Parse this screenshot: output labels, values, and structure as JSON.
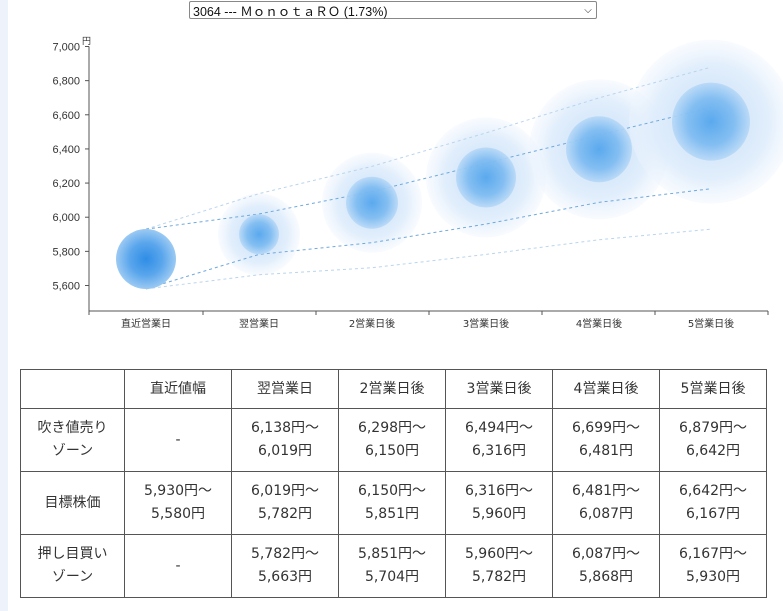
{
  "selector": {
    "value": "3064 --- Ｍｏｎｏｔａ​ＲＯ (1.73%)"
  },
  "chart_data": {
    "type": "scatter",
    "y_unit": "円",
    "ylim": [
      5600,
      7000
    ],
    "y_ticks": [
      "5,600",
      "5,800",
      "6,000",
      "6,200",
      "6,400",
      "6,600",
      "6,800",
      "7,000"
    ],
    "categories": [
      "直近営業日",
      "翌営業日",
      "2営業日後",
      "3営業日後",
      "4営業日後",
      "5営業日後"
    ],
    "center_values": [
      5755,
      5900,
      6085,
      6233,
      6398,
      6560
    ],
    "outer_bands": {
      "upper": [
        5930,
        6138,
        6298,
        6494,
        6699,
        6879
      ],
      "lower": [
        5580,
        5663,
        5704,
        5782,
        5868,
        5930
      ]
    },
    "inner_bands": {
      "upper": [
        5930,
        6019,
        6150,
        6316,
        6481,
        6642
      ],
      "lower": [
        5580,
        5782,
        5851,
        5960,
        6087,
        6167
      ]
    },
    "colors": {
      "bubble_core": "#4a9be6",
      "bubble_halo": "#d6e8fa",
      "band_line": "#9cc3e8",
      "axis": "#555555"
    }
  },
  "table": {
    "headers": [
      "",
      "直近値幅",
      "翌営業日",
      "2営業日後",
      "3営業日後",
      "4営業日後",
      "5営業日後"
    ],
    "rows": [
      {
        "label_lines": [
          "吹き値売り",
          "ゾーン"
        ],
        "cells": [
          [
            "-"
          ],
          [
            "6,138円〜",
            "6,019円"
          ],
          [
            "6,298円〜",
            "6,150円"
          ],
          [
            "6,494円〜",
            "6,316円"
          ],
          [
            "6,699円〜",
            "6,481円"
          ],
          [
            "6,879円〜",
            "6,642円"
          ]
        ]
      },
      {
        "label_lines": [
          "目標株価"
        ],
        "cells": [
          [
            "5,930円〜",
            "5,580円"
          ],
          [
            "6,019円〜",
            "5,782円"
          ],
          [
            "6,150円〜",
            "5,851円"
          ],
          [
            "6,316円〜",
            "5,960円"
          ],
          [
            "6,481円〜",
            "6,087円"
          ],
          [
            "6,642円〜",
            "6,167円"
          ]
        ]
      },
      {
        "label_lines": [
          "押し目買い",
          "ゾーン"
        ],
        "cells": [
          [
            "-"
          ],
          [
            "5,782円〜",
            "5,663円"
          ],
          [
            "5,851円〜",
            "5,704円"
          ],
          [
            "5,960円〜",
            "5,782円"
          ],
          [
            "6,087円〜",
            "5,868円"
          ],
          [
            "6,167円〜",
            "5,930円"
          ]
        ]
      }
    ]
  }
}
